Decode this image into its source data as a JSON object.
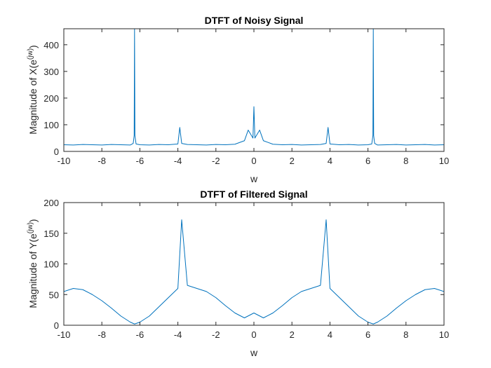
{
  "chart_data": [
    {
      "type": "line",
      "title": "DTFT of Noisy Signal",
      "xlabel": "w",
      "ylabel": {
        "base": "Magnitude of X(e",
        "sup": "(jw)",
        "close": ")"
      },
      "xlim": [
        -10,
        10
      ],
      "ylim": [
        0,
        460
      ],
      "xticks": [
        -10,
        -8,
        -6,
        -4,
        -2,
        0,
        2,
        4,
        6,
        8,
        10
      ],
      "yticks": [
        0,
        100,
        200,
        300,
        400
      ],
      "grid": false,
      "color": "#0072BD",
      "series": [
        {
          "x": [
            -10,
            -9.5,
            -9,
            -8.5,
            -8,
            -7.5,
            -7,
            -6.5,
            -6.35,
            -6.3,
            -6.28,
            -6.26,
            -6.2,
            -6,
            -5.5,
            -5,
            -4.5,
            -4,
            -3.9,
            -3.8,
            -3.5,
            -3,
            -2.5,
            -2,
            -1.5,
            -1,
            -0.5,
            -0.3,
            -0.05,
            0,
            0.05,
            0.3,
            0.5,
            1,
            1.5,
            2,
            2.5,
            3,
            3.5,
            3.8,
            3.9,
            4,
            4.5,
            5,
            5.5,
            6,
            6.2,
            6.26,
            6.28,
            6.3,
            6.35,
            6.5,
            7,
            7.5,
            8,
            8.5,
            9,
            9.5,
            10
          ],
          "values": [
            25,
            24,
            26,
            25,
            24,
            26,
            25,
            24,
            30,
            60,
            460,
            60,
            28,
            25,
            24,
            26,
            25,
            28,
            90,
            30,
            26,
            25,
            24,
            26,
            25,
            27,
            40,
            80,
            50,
            168,
            50,
            80,
            40,
            27,
            25,
            26,
            24,
            25,
            26,
            30,
            90,
            28,
            25,
            26,
            24,
            25,
            28,
            60,
            460,
            60,
            30,
            24,
            25,
            26,
            24,
            25,
            26,
            24,
            25
          ]
        }
      ]
    },
    {
      "type": "line",
      "title": "DTFT of Filtered Signal",
      "xlabel": "w",
      "ylabel": {
        "base": "Magnitude of Y(e",
        "sup": "(jw)",
        "close": ")"
      },
      "xlim": [
        -10,
        10
      ],
      "ylim": [
        0,
        200
      ],
      "xticks": [
        -10,
        -8,
        -6,
        -4,
        -2,
        0,
        2,
        4,
        6,
        8,
        10
      ],
      "yticks": [
        0,
        50,
        100,
        150,
        200
      ],
      "grid": false,
      "color": "#0072BD",
      "series": [
        {
          "x": [
            -10,
            -9.5,
            -9,
            -8.5,
            -8,
            -7.5,
            -7,
            -6.5,
            -6.28,
            -6,
            -5.5,
            -5,
            -4.5,
            -4,
            -3.8,
            -3.5,
            -3,
            -2.5,
            -2,
            -1.5,
            -1,
            -0.5,
            0,
            0.5,
            1,
            1.5,
            2,
            2.5,
            3,
            3.5,
            3.8,
            4,
            4.5,
            5,
            5.5,
            6,
            6.28,
            6.5,
            7,
            7.5,
            8,
            8.5,
            9,
            9.5,
            10
          ],
          "values": [
            55,
            60,
            58,
            50,
            40,
            28,
            15,
            5,
            2,
            5,
            15,
            30,
            45,
            60,
            172,
            65,
            60,
            55,
            45,
            32,
            20,
            12,
            20,
            12,
            20,
            32,
            45,
            55,
            60,
            65,
            172,
            60,
            45,
            30,
            15,
            5,
            2,
            5,
            15,
            28,
            40,
            50,
            58,
            60,
            55
          ]
        }
      ]
    }
  ]
}
